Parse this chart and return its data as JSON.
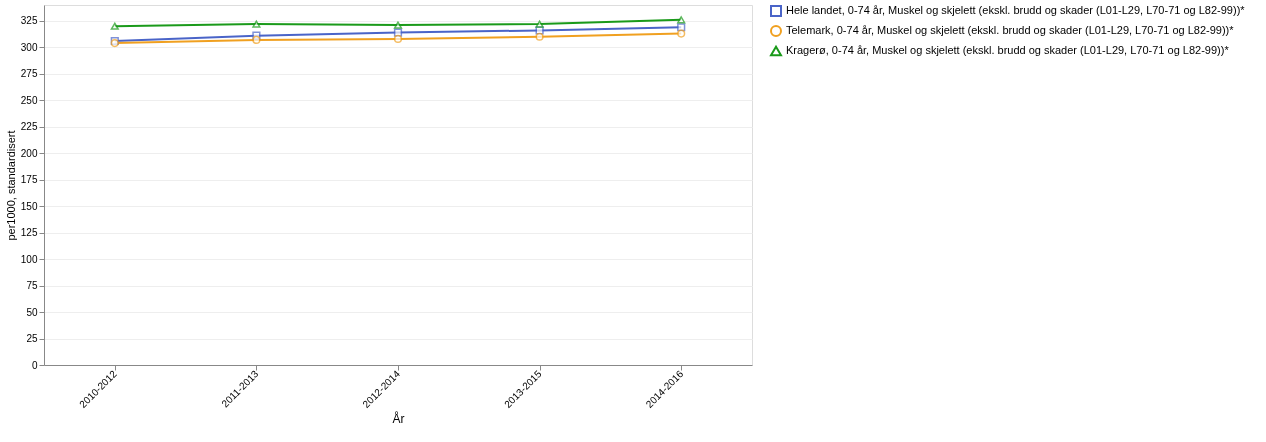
{
  "chart_data": {
    "type": "line",
    "xlabel": "År",
    "ylabel": "per1000, standardisert",
    "categories": [
      "2010-2012",
      "2011-2013",
      "2012-2014",
      "2013-2015",
      "2014-2016"
    ],
    "series": [
      {
        "name": "Hele landet, 0-74 år, Muskel og skjelett (ekskl. brudd og skader (L01-L29, L70-71 og L82-99))*",
        "color": "#4a64c8",
        "marker": "square",
        "values": [
          306,
          311,
          314,
          316,
          319
        ]
      },
      {
        "name": "Telemark, 0-74 år, Muskel og skjelett (ekskl. brudd og skader (L01-L29, L70-71 og L82-99))*",
        "color": "#f0a020",
        "marker": "circle",
        "values": [
          304,
          307,
          308,
          310,
          313
        ]
      },
      {
        "name": "Kragerø, 0-74 år, Muskel og skjelett (ekskl. brudd og skader (L01-L29, L70-71 og L82-99))*",
        "color": "#1a9a1a",
        "marker": "triangle",
        "values": [
          320,
          322,
          321,
          322,
          326
        ]
      }
    ],
    "ylim": [
      0,
      340
    ],
    "yticks": [
      0,
      25,
      50,
      75,
      100,
      125,
      150,
      175,
      200,
      225,
      250,
      275,
      300,
      325
    ],
    "grid": "y",
    "legend": "right",
    "line_style": "solid"
  }
}
